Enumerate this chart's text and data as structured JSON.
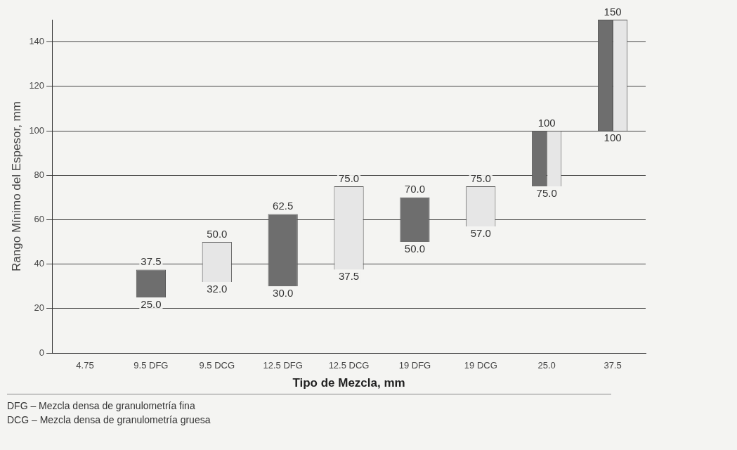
{
  "chart_data": {
    "type": "bar",
    "xlabel": "Tipo de Mezcla, mm",
    "ylabel": "Rango Mínimo del Espesor, mm",
    "categories": [
      "4.75",
      "9.5 DFG",
      "9.5 DCG",
      "12.5 DFG",
      "12.5 DCG",
      "19 DFG",
      "19 DCG",
      "25.0",
      "37.5"
    ],
    "series": [
      {
        "color": "#6e6e6e",
        "values": [
          null,
          12.5,
          null,
          32.5,
          null,
          20,
          null,
          25,
          50
        ],
        "base": [
          null,
          25,
          null,
          30,
          null,
          50,
          null,
          75,
          100
        ]
      },
      {
        "color": "#e6e6e6",
        "values": [
          null,
          null,
          18,
          null,
          37.5,
          null,
          18,
          25,
          50
        ],
        "base": [
          null,
          null,
          32,
          null,
          37.5,
          null,
          57,
          75,
          100
        ]
      }
    ],
    "ylim": [
      0,
      150
    ],
    "yticks": [
      0,
      20,
      40,
      60,
      80,
      100,
      120,
      140
    ],
    "grid": "y",
    "annotations": [
      {
        "text": "37.5",
        "x": "9.5 DFG",
        "y": 37.5
      },
      {
        "text": "25.0",
        "x": "9.5 DFG",
        "y": 25
      },
      {
        "text": "50.0",
        "x": "9.5 DCG",
        "y": 50
      },
      {
        "text": "32.0",
        "x": "9.5 DCG",
        "y": 32
      },
      {
        "text": "62.5",
        "x": "12.5 DFG",
        "y": 62.5
      },
      {
        "text": "30.0",
        "x": "12.5 DFG",
        "y": 30
      },
      {
        "text": "75.0",
        "x": "12.5 DCG",
        "y": 75
      },
      {
        "text": "37.5",
        "x": "12.5 DCG",
        "y": 37.5
      },
      {
        "text": "70.0",
        "x": "19 DFG",
        "y": 70
      },
      {
        "text": "50.0",
        "x": "19 DFG",
        "y": 50
      },
      {
        "text": "75.0",
        "x": "19 DCG",
        "y": 75
      },
      {
        "text": "57.0",
        "x": "19 DCG",
        "y": 57
      },
      {
        "text": "100",
        "x": "25.0",
        "y": 100
      },
      {
        "text": "75.0",
        "x": "25.0",
        "y": 75
      },
      {
        "text": "150",
        "x": "37.5",
        "y": 150
      },
      {
        "text": "100",
        "x": "37.5",
        "y": 100
      },
      "DFG – Mezcla densa de granulometría fina",
      "DCG – Mezcla densa de granulometría gruesa"
    ]
  }
}
